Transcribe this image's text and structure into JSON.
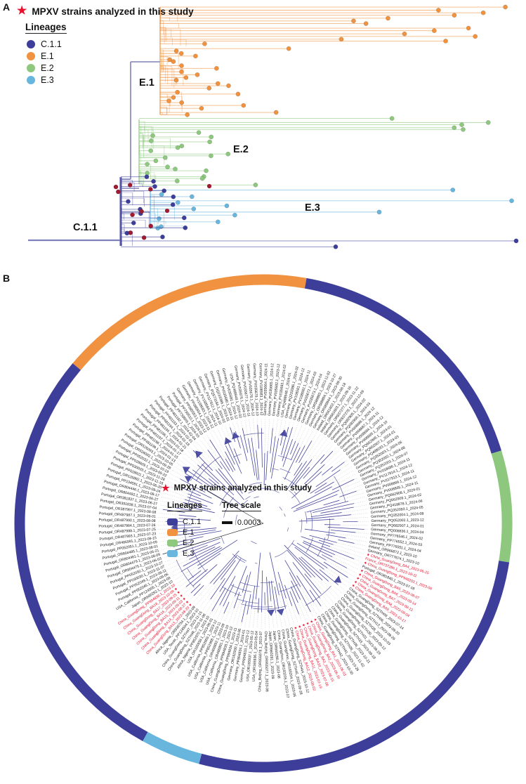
{
  "panels": {
    "a_label": "A",
    "b_label": "B"
  },
  "colors": {
    "c11": "#3d3e99",
    "e1": "#f0923f",
    "e2": "#8dc87e",
    "e3": "#68b6de",
    "star": "#e8112d",
    "study": "#9e1b32",
    "tree": "#3d3e99",
    "trunk": "#7173b4"
  },
  "legend": {
    "star_label": "MPXV strains analyzed in this study",
    "lineages_title": "Lineages",
    "items": [
      {
        "label": "C.1.1",
        "color": "#3d3e99"
      },
      {
        "label": "E.1",
        "color": "#f0923f"
      },
      {
        "label": "E.2",
        "color": "#8dc87e"
      },
      {
        "label": "E.3",
        "color": "#68b6de"
      }
    ]
  },
  "panel_a": {
    "clade_labels": [
      "E.1",
      "E.2",
      "E.3",
      "C.1.1"
    ]
  },
  "panel_b": {
    "tree_scale_title": "Tree scale",
    "tree_scale_value": "0.0003",
    "ring": [
      {
        "lineage": "E.1",
        "start": -50,
        "end": 10
      },
      {
        "lineage": "C.1.1",
        "start": 10,
        "end": 73
      },
      {
        "lineage": "E.2",
        "start": 73,
        "end": 99
      },
      {
        "lineage": "C.1.1",
        "start": 99,
        "end": 195
      },
      {
        "lineage": "E.3",
        "start": 195,
        "end": 209
      },
      {
        "lineage": "C.1.1",
        "start": 209,
        "end": 310
      }
    ],
    "tips": [
      "Germany_PV035664.1_2024-11",
      "Germany_PV035665.1_2024-12",
      "Germany_PV035682.1_2023-12",
      "Germany_PV035683.1_2024-02",
      "USA_PQ488948.1_2024-01",
      "Germany_PQ233386.1_2024-02",
      "Germany_PV108581.1_2024-12",
      "Germany_PV108582.1_2024-11",
      "Germany_PV035672.1_2024-03",
      "Germany_PV035673.1_2024-04",
      "Germany_OR588883.1_2023-11-02",
      "Germany_OR588884.1_2023-10-27",
      "Germany_OR589944.1_2023-09-30",
      "Ireland_OR661602.1_2023-08-18",
      "Ireland_OR661603.1_2023-08-16",
      "Germany_OR837277.1_2023-11-22",
      "Germany_OR837278.1_2023-12-09",
      "Germany_PQ082905.1_2024-02",
      "Germany_PQ082906.1_2024-03",
      "Germany_PV008686.1_2024-12",
      "Germany_PV008687.1_2024-11",
      "Germany_PV008684.1_2024-12",
      "Germany_PV008685.1_2024-10",
      "Germany_PQ662906.1_2024-01",
      "Germany_PQ662907.1_2024-01",
      "Germany_PQ488033.1_2024-03",
      "Germany_PQ352003.1_2024-06",
      "Germany_PQ352002.1_2024-08",
      "Germany_PQ352001.1_2024-07",
      "Germany_PV018686.1_2024-11",
      "Germany_PV117914.1_2024-12",
      "Germany_PV117913.1_2024-11",
      "Germany_PV008866.1_2024-12",
      "Germany_PV008865.1_2024-11",
      "Germany_PQ662908.1_2024-01",
      "Germany_PQ662909.1_2024-02",
      "Germany_PQ418878.1_2024-06",
      "Germany_PQ352093.1_2024-05",
      "Germany_PQ352004.1_2024-08",
      "Germany_PQ052002.1_2023-12",
      "Germany_PQ682907.1_2024-01",
      "Germany_PQ008836.1_2024-04",
      "Germany_PP776546.1_2024-02",
      "Germany_PP776552.1_2024-03",
      "Germany_PP776551.1_2024-04",
      "Ireland_OR966872.1_2023-10",
      "Germany_OR777674.1_2023-10",
      {
        "t": "China_GuangDong_BA4_2023-06-25",
        "r": 1,
        "s": 1
      },
      {
        "t": "France_OR737286.1_2023-10-11",
        "r": 1
      },
      {
        "t": "China_GuangDong_PP948203.1_2023-06",
        "r": 1,
        "s": 1
      },
      "Portugal_OR381840.1_2023-07-18",
      {
        "t": "China_GuangDong_BA5_2023-08-07",
        "r": 1,
        "s": 1
      },
      {
        "t": "China_GuangDong_BA6_2023-09-14",
        "r": 1,
        "s": 1
      },
      {
        "t": "China_GuangDong_BA7_2023-08-12",
        "r": 1,
        "s": 1
      },
      {
        "t": "China_GuangDong_BA8_2023-09-04",
        "r": 1,
        "s": 1
      },
      {
        "t": "China_GuangDong_BA9_2023-10-17",
        "r": 1,
        "s": 1
      },
      "China_GuangDong_SZTH09_2023-07-14",
      "China_GuangDong_SZTH06_2023-09-20",
      "China_GuangDong_SZTH13_2023-08-26",
      "China_GuangDong_SZTH28_2023-10-03",
      "China_GuangDong_SZTH30_2023-09-12",
      "China_GuangDong_SZTH31_2023-08-29",
      "China_GuangDong_SZTH33_2023-09-18",
      "China_GuangDong_SZTH36_2023-10-21",
      "China_GuangDong_SZTH38_2023-11-02",
      "China_GuangDong_SZTH41_2023-10-26",
      "China_GuangDong_SZTH42_2023-10-30",
      {
        "t": "China_GuangDong_BA1_2023-06-03",
        "r": 1,
        "s": 1
      },
      {
        "t": "China_GuangDong_BA2_2023-06-10",
        "r": 1,
        "s": 1
      },
      {
        "t": "China_GuangDong_BA3_2023-06-15",
        "r": 1,
        "s": 1
      },
      {
        "t": "China_GuangDong_BA10_2023-07-06",
        "r": 1,
        "s": 1
      },
      {
        "t": "China_GuangDong_BA11_2023-07-19",
        "r": 1,
        "s": 1
      },
      {
        "t": "China_GuangDong_BA12_2023-08-02",
        "r": 1,
        "s": 1
      },
      "China_GuangDong_SZTH44_2023-10-12",
      "China_GuangDong_SZTH45_2023-09-28",
      "China_Guangzhou_OR183204.1_2023-06",
      "China_Guangzhou_OR183205.1_2023-07",
      "Japan_OR660290.1_2023-08",
      "Japan_OR660291.1_2023-09",
      "China_Beijing_OR955077.1_2023-08",
      "China_Beijing_OR955078.1_2023-07",
      "USA_OR165936.1_2023-05-04",
      "USA_OR165937.1_2023-05-12",
      "Germany_PP894833.1_2023-12",
      "Germany_PP894834.1_2024-01",
      "Germany_OR162930.1_2023-06",
      "China_GuangDong_PP994834.1_2023-11",
      "China_GuangDong_PP994835.1_2023-12",
      "USA_California_OR466891.1_2023-10",
      "USA_California_OR466892.1_2023-09",
      "USA_California_PP852968.1_2023-11",
      "USA_California_PP852969.1_2023-12",
      "USA_OR165938.1_2023-06-01",
      "Africa_Nigeria_PP852970.1_2023-10",
      "China_GuangDong_SZTH46_2023-11-08",
      "China_GuangDong_SZTH47_2023-11-15",
      "USA_Texas_PP124504.1_2023-10",
      "Africa_Nigeria_OR838754.1_2023-09",
      {
        "t": "China_GuangDong_BA13_2023-08-20",
        "r": 1,
        "s": 1
      },
      {
        "t": "China_GuangDong_BA14_2023-08-27",
        "r": 1,
        "s": 1
      },
      {
        "t": "China_GuangDong_BA15_2023-09-03",
        "r": 1,
        "s": 1
      },
      {
        "t": "China_GuangDong_BA16_2023-09-11",
        "r": 1,
        "s": 1
      },
      {
        "t": "China_GuangDong_BA17_2023-09-25",
        "r": 1,
        "s": 1
      },
      {
        "t": "China_GuangDong_BA18_2023-10-08",
        "r": 1,
        "s": 1
      },
      {
        "t": "China_GuangDong_PP994836.1_2023-10",
        "r": 1
      },
      "Japan_OR660292.1_2023-10",
      "USA_California_PP124505.1_2023-09",
      "Portugal_PP052045.1_2023-09-06",
      "Portugal_PP052049.1_2023-06-11",
      "Portugal_PP030030.1_2023-11-07",
      "Portugal_PP052050.1_2023-10-27",
      "Portugal_OR804475.1_2023-06-03",
      "Portugal_OR804479.1_2023-08-09",
      "Portugal_OR804481.1_2023-06-21",
      "Portugal_OR804485.1_2023-08-01",
      "Portugal_PP052051.1_2023-10-09",
      "Portugal_OR486991.1_2023-09-15",
      "Portugal_OR487993.1_2023-07-23",
      "Portugal_OR487988.1_2023-07-25",
      "Portugal_OR487984.1_2023-07-26",
      "Portugal_OR487990.1_2023-08-08",
      "Portugal_OR487987.1_2023-09-01",
      "Portugal_OR387997.1_2023-08-08",
      "Portugal_OR391838.1_2023-07-04",
      "Portugal_OR381837.1_2023-06-27",
      "Portugal_OR804492.1_2023-06-27",
      "Portugal_OR804446.1_2023-08-17",
      "Portugal_PP234591.1_2023-09-24",
      "Portugal_OR126892.1_2023-06-20",
      "Portugal_PP028921.1_2023-11-16",
      "Portugal_PP030033.1_2023-11-28",
      "Portugal_PP028929.1_2023-05-22",
      "Portugal_PP052032.1_2023-10-19",
      "Portugal_OR526092.1_2023-09-28",
      "Portugal_OR526093.1_2023-10-05",
      "Portugal_PP481199.1_2024-01-13",
      "Portugal_PP481198.1_2024-01-15",
      "Portugal_PP481197.1_2024-01-17",
      "Portugal_PP481196.1_2024-01-18",
      "Portugal_PP481195.1_2024-01-21",
      "Portugal_PP481194.1_2024-01-18",
      "Portugal_PP481193.1_2024-02-01",
      "Portugal_PP481192.1_2024-02-04",
      "Portugal_PP739509.1_2024-03",
      "Portugal_PP739510.1_2024-03",
      "Germany_PP085553.1_2023-12",
      "Germany_PP085554.1_2023-11",
      "Germany_PV158583.1_2024-12",
      "Germany_PV158584.1_2024-11",
      "Germany_PV117912.1_2024-10",
      "Germany_PQ573184.1_2024-02",
      "Germany_OQ233386.1_2023-01",
      "Germany_PV035680.1_2024-11",
      "Germany_PV035681.1_2024-12",
      "USA_PQ488949.1_2024-02",
      "Germany_PV035676.1_2024-12",
      "Germany_PV035677.1_2024-11",
      "Germany_PV035678.1_2024-12",
      "Germany_PV035679.1_2024-10",
      "Germany_PV108583.1_2024-12"
    ]
  }
}
